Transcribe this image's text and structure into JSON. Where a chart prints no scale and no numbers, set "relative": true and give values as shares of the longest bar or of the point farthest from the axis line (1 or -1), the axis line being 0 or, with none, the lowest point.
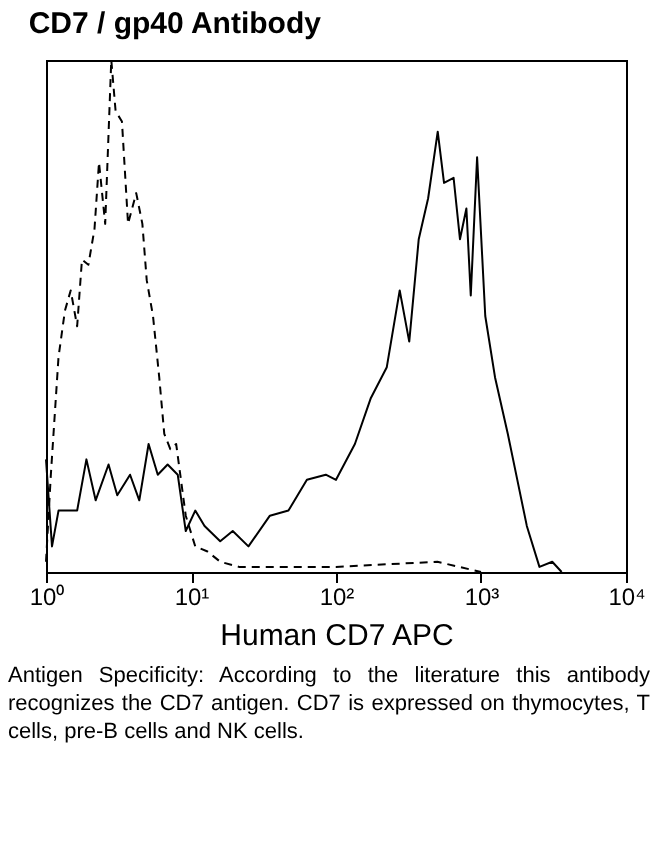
{
  "chart_data": {
    "type": "line",
    "title": "CD7 / gp40 Antibody",
    "xlabel": "Human CD7 APC",
    "relative": true,
    "log": "x",
    "grid": false,
    "tick_labels": "x",
    "marker": "none",
    "xlim": [
      1,
      10000
    ],
    "xticks": [
      {
        "value": 1,
        "label": "10⁰"
      },
      {
        "value": 10,
        "label": "10¹"
      },
      {
        "value": 100,
        "label": "10²"
      },
      {
        "value": 1000,
        "label": "10³"
      },
      {
        "value": 10000,
        "label": "10⁴"
      }
    ],
    "annotations": [
      "Antigen Specificity: According to the literature this antibody recognizes the CD7 antigen. CD7 is expressed on thymocytes, T cells, pre-B cells and NK cells."
    ],
    "series": [
      {
        "color": "#000000",
        "line_style": "dashed",
        "x": [
          1.0,
          1.08,
          1.22,
          1.35,
          1.48,
          1.64,
          1.77,
          1.96,
          2.16,
          2.32,
          2.56,
          2.82,
          3.02,
          3.34,
          3.68,
          4.19,
          4.62,
          4.95,
          5.47,
          6.04,
          6.54,
          7.2,
          7.9,
          9.2,
          10.7,
          13,
          15.9,
          21.4,
          31.7,
          100,
          500,
          1000
        ],
        "values": [
          0.02,
          0.19,
          0.42,
          0.51,
          0.55,
          0.48,
          0.61,
          0.6,
          0.67,
          0.8,
          0.68,
          1.0,
          0.9,
          0.88,
          0.68,
          0.74,
          0.68,
          0.57,
          0.5,
          0.38,
          0.27,
          0.24,
          0.25,
          0.11,
          0.05,
          0.04,
          0.02,
          0.01,
          0.01,
          0.01,
          0.02,
          0
        ]
      },
      {
        "color": "#000000",
        "line_style": "solid",
        "x": [
          1.0,
          1.1,
          1.22,
          1.41,
          1.64,
          1.9,
          2.2,
          2.7,
          3.1,
          3.8,
          4.4,
          5.1,
          5.9,
          6.9,
          8.1,
          9.2,
          10.7,
          12.4,
          15.9,
          19.4,
          24.9,
          35,
          47,
          63,
          85,
          100,
          135,
          174,
          224,
          275,
          320,
          372,
          432,
          503,
          556,
          647,
          716,
          793,
          850,
          940,
          1070,
          1250,
          1530,
          1780,
          2070,
          2530,
          3100,
          3600
        ],
        "values": [
          0.22,
          0.05,
          0.12,
          0.12,
          0.12,
          0.22,
          0.14,
          0.21,
          0.15,
          0.19,
          0.14,
          0.25,
          0.19,
          0.21,
          0.19,
          0.08,
          0.12,
          0.09,
          0.06,
          0.08,
          0.05,
          0.11,
          0.12,
          0.18,
          0.19,
          0.18,
          0.25,
          0.34,
          0.4,
          0.55,
          0.45,
          0.65,
          0.73,
          0.86,
          0.76,
          0.77,
          0.65,
          0.71,
          0.54,
          0.81,
          0.5,
          0.38,
          0.27,
          0.18,
          0.09,
          0.01,
          0.02,
          0
        ]
      }
    ]
  }
}
